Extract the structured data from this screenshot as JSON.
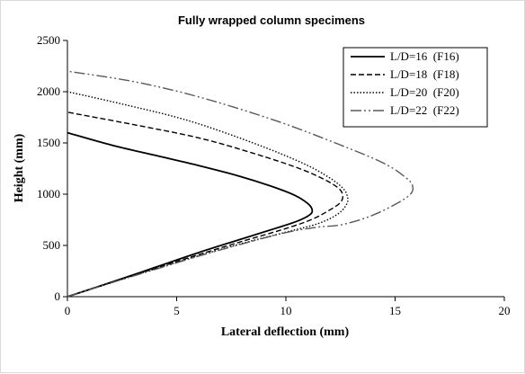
{
  "chart_data": {
    "type": "line",
    "title": "Fully wrapped column specimens",
    "xlabel": "Lateral deflection (mm)",
    "ylabel": "Height (mm)",
    "xlim": [
      0,
      20
    ],
    "ylim": [
      0,
      2500
    ],
    "xticks": [
      0,
      5,
      10,
      15,
      20
    ],
    "yticks": [
      0,
      500,
      1000,
      1500,
      2000,
      2500
    ],
    "grid": false,
    "legend_position": "top-right",
    "series": [
      {
        "name": "L/D=16  (F16)",
        "color": "#000000",
        "style": "solid",
        "points": [
          [
            0,
            0
          ],
          [
            2.0,
            140
          ],
          [
            4.0,
            285
          ],
          [
            6.0,
            430
          ],
          [
            8.0,
            565
          ],
          [
            9.5,
            665
          ],
          [
            10.5,
            735
          ],
          [
            11.1,
            800
          ],
          [
            11.2,
            850
          ],
          [
            11.0,
            910
          ],
          [
            10.4,
            990
          ],
          [
            9.3,
            1080
          ],
          [
            7.8,
            1180
          ],
          [
            6.0,
            1280
          ],
          [
            4.0,
            1380
          ],
          [
            2.0,
            1480
          ],
          [
            0,
            1600
          ]
        ]
      },
      {
        "name": "L/D=18  (F18)",
        "color": "#000000",
        "style": "dashed",
        "points": [
          [
            0,
            0
          ],
          [
            2.0,
            140
          ],
          [
            4.0,
            275
          ],
          [
            6.0,
            410
          ],
          [
            8.0,
            540
          ],
          [
            10.0,
            665
          ],
          [
            11.2,
            755
          ],
          [
            12.0,
            845
          ],
          [
            12.5,
            920
          ],
          [
            12.6,
            990
          ],
          [
            12.4,
            1060
          ],
          [
            11.7,
            1150
          ],
          [
            10.5,
            1260
          ],
          [
            8.5,
            1400
          ],
          [
            6.0,
            1550
          ],
          [
            3.0,
            1680
          ],
          [
            0,
            1800
          ]
        ]
      },
      {
        "name": "L/D=20  (F20)",
        "color": "#000000",
        "style": "dotted",
        "points": [
          [
            0,
            0
          ],
          [
            2.0,
            135
          ],
          [
            4.0,
            270
          ],
          [
            6.0,
            400
          ],
          [
            8.0,
            520
          ],
          [
            10.0,
            630
          ],
          [
            11.5,
            715
          ],
          [
            12.4,
            810
          ],
          [
            12.8,
            910
          ],
          [
            12.8,
            990
          ],
          [
            12.6,
            1060
          ],
          [
            12.0,
            1160
          ],
          [
            10.8,
            1300
          ],
          [
            8.5,
            1500
          ],
          [
            5.5,
            1720
          ],
          [
            2.5,
            1880
          ],
          [
            0,
            2000
          ]
        ]
      },
      {
        "name": "L/D=22  (F22)",
        "color": "#595959",
        "style": "dash-dot-dot",
        "points": [
          [
            0,
            0
          ],
          [
            2.0,
            135
          ],
          [
            4.0,
            265
          ],
          [
            6.0,
            395
          ],
          [
            8.0,
            515
          ],
          [
            10.0,
            625
          ],
          [
            11.5,
            680
          ],
          [
            12.5,
            700
          ],
          [
            13.8,
            780
          ],
          [
            15.0,
            900
          ],
          [
            15.7,
            1000
          ],
          [
            15.8,
            1080
          ],
          [
            15.5,
            1160
          ],
          [
            14.5,
            1300
          ],
          [
            12.5,
            1480
          ],
          [
            9.5,
            1720
          ],
          [
            6.0,
            1950
          ],
          [
            3.0,
            2100
          ],
          [
            0,
            2200
          ]
        ]
      }
    ]
  }
}
